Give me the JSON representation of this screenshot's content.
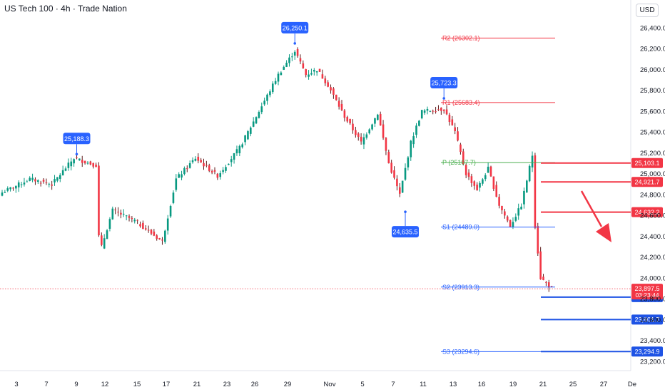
{
  "header": {
    "title": "US Tech 100 · 4h · Trade Nation",
    "currency": "USD"
  },
  "colors": {
    "bull": "#089981",
    "bear": "#f23645",
    "wick_dark": "#5d1a1a",
    "pivot_red": "#f23645",
    "pivot_green": "#4caf50",
    "pivot_blue": "#2962ff",
    "callout_blue": "#2962ff",
    "level_red": "#f23645",
    "level_blue": "#1e53e5",
    "arrow": "#f23645"
  },
  "chart_data": {
    "type": "candlestick",
    "title": "US Tech 100 · 4h · Trade Nation",
    "currency": "USD",
    "ylim": [
      23130,
      26600
    ],
    "y_ticks": [
      "26,400.0",
      "26,200.0",
      "26,000.0",
      "25,800.0",
      "25,600.0",
      "25,400.0",
      "25,200.0",
      "25,000.0",
      "24,800.0",
      "24,600.0",
      "24,400.0",
      "24,200.0",
      "24,000.0",
      "23,800.0",
      "23,600.0",
      "23,400.0",
      "23,200.0"
    ],
    "y_tick_values": [
      26400,
      26200,
      26000,
      25800,
      25600,
      25400,
      25200,
      25000,
      24800,
      24600,
      24400,
      24200,
      24000,
      23800,
      23600,
      23400,
      23200
    ],
    "x_ticks": [
      "3",
      "7",
      "9",
      "12",
      "15",
      "17",
      "21",
      "23",
      "26",
      "29",
      "Nov",
      "5",
      "7",
      "11",
      "13",
      "16",
      "19",
      "21",
      "25",
      "27",
      "De"
    ],
    "anchors": [
      {
        "i": 0,
        "c": 24820
      },
      {
        "i": 10,
        "c": 24950
      },
      {
        "i": 18,
        "c": 24900
      },
      {
        "i": 26,
        "c": 25150
      },
      {
        "i": 34,
        "c": 25080
      },
      {
        "i": 35,
        "c": 24400
      },
      {
        "i": 36,
        "c": 24300
      },
      {
        "i": 40,
        "c": 24650
      },
      {
        "i": 48,
        "c": 24550
      },
      {
        "i": 58,
        "c": 24350
      },
      {
        "i": 63,
        "c": 24950
      },
      {
        "i": 70,
        "c": 25150
      },
      {
        "i": 78,
        "c": 24980
      },
      {
        "i": 86,
        "c": 25250
      },
      {
        "i": 92,
        "c": 25550
      },
      {
        "i": 100,
        "c": 25950
      },
      {
        "i": 106,
        "c": 26180
      },
      {
        "i": 110,
        "c": 25950
      },
      {
        "i": 114,
        "c": 26000
      },
      {
        "i": 118,
        "c": 25850
      },
      {
        "i": 124,
        "c": 25550
      },
      {
        "i": 130,
        "c": 25300
      },
      {
        "i": 136,
        "c": 25580
      },
      {
        "i": 140,
        "c": 25100
      },
      {
        "i": 144,
        "c": 24800
      },
      {
        "i": 148,
        "c": 25300
      },
      {
        "i": 152,
        "c": 25600
      },
      {
        "i": 160,
        "c": 25620
      },
      {
        "i": 164,
        "c": 25400
      },
      {
        "i": 168,
        "c": 25000
      },
      {
        "i": 172,
        "c": 24850
      },
      {
        "i": 176,
        "c": 25050
      },
      {
        "i": 180,
        "c": 24700
      },
      {
        "i": 184,
        "c": 24500
      },
      {
        "i": 188,
        "c": 24700
      },
      {
        "i": 192,
        "c": 25180
      },
      {
        "i": 193,
        "c": 24500
      },
      {
        "i": 195,
        "c": 24000
      },
      {
        "i": 199,
        "c": 23900
      }
    ],
    "callouts": [
      {
        "label": "26,250.1",
        "value": 26250.1,
        "i": 106
      },
      {
        "label": "25,723.3",
        "value": 25723.3,
        "i": 160
      },
      {
        "label": "25,188.3",
        "value": 25188.3,
        "i": 27
      },
      {
        "label": "24,635.5",
        "value": 24635.5,
        "i": 146
      }
    ],
    "pivots": [
      {
        "key": "R2",
        "label": "R2 (26302.1)",
        "value": 26302.1,
        "type": "red"
      },
      {
        "key": "R1",
        "label": "R1 (25683.4)",
        "value": 25683.4,
        "type": "red"
      },
      {
        "key": "P",
        "label": "P (25107.7)",
        "value": 25107.7,
        "type": "green"
      },
      {
        "key": "S1",
        "label": "S1 (24489.0)",
        "value": 24489.0,
        "type": "blue"
      },
      {
        "key": "S2",
        "label": "S2 (23913.3)",
        "value": 23913.3,
        "type": "blue"
      },
      {
        "key": "S3",
        "label": "S3 (23294.6)",
        "value": 23294.6,
        "type": "blue"
      }
    ],
    "levels": [
      {
        "label": "25,103.1",
        "value": 25103.1,
        "type": "red"
      },
      {
        "label": "24,921.7",
        "value": 24921.7,
        "type": "red"
      },
      {
        "label": "24,632.2",
        "value": 24632.2,
        "type": "red"
      },
      {
        "label": "23,816.9",
        "value": 23816.9,
        "type": "blue"
      },
      {
        "label": "23,601.7",
        "value": 23601.7,
        "type": "blue"
      },
      {
        "label": "23,294.9",
        "value": 23294.9,
        "type": "blue"
      }
    ],
    "current_price": {
      "label": "23,897.5",
      "timer": "03:23:44",
      "value": 23897.5
    },
    "arrow": {
      "direction": "down"
    }
  }
}
